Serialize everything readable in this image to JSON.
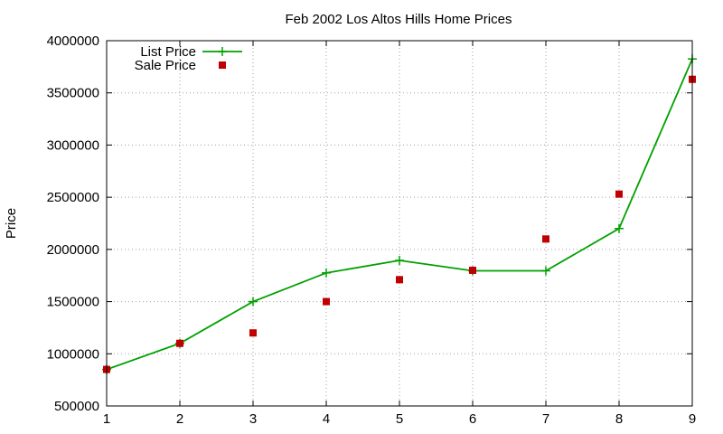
{
  "chart_data": {
    "type": "line",
    "title": "Feb 2002 Los Altos Hills Home Prices",
    "xlabel": "",
    "ylabel": "Price",
    "x": [
      1,
      2,
      3,
      4,
      5,
      6,
      7,
      8,
      9
    ],
    "xlim": [
      1,
      9
    ],
    "ylim": [
      500000,
      4000000
    ],
    "x_ticks": [
      "1",
      "2",
      "3",
      "4",
      "5",
      "6",
      "7",
      "8",
      "9"
    ],
    "y_ticks": [
      "500000",
      "1000000",
      "1500000",
      "2000000",
      "2500000",
      "3000000",
      "3500000",
      "4000000"
    ],
    "grid": true,
    "legend_position": "top-left",
    "series": [
      {
        "name": "List Price",
        "style": "lines+crosses",
        "color": "#00a000",
        "values": [
          850000,
          1100000,
          1500000,
          1775000,
          1895000,
          1795000,
          1795000,
          2200000,
          3825000
        ]
      },
      {
        "name": "Sale Price",
        "style": "squares",
        "color": "#c00000",
        "values": [
          850000,
          1100000,
          1200000,
          1500000,
          1710000,
          1800000,
          2100000,
          2530000,
          3630000
        ]
      }
    ]
  }
}
